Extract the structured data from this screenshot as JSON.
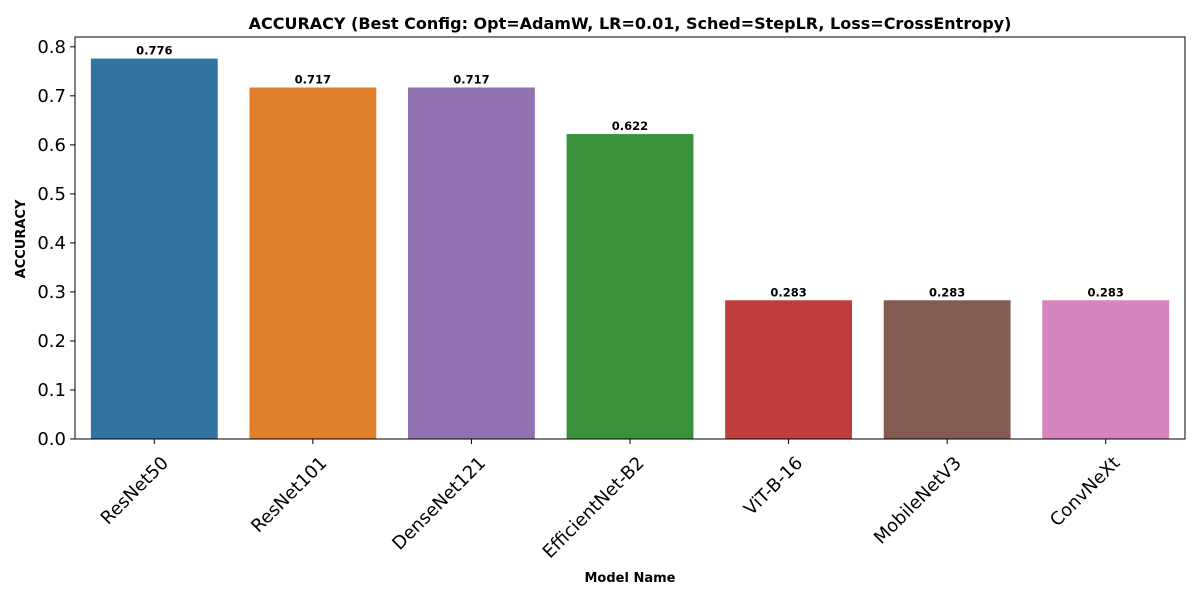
{
  "chart_data": {
    "type": "bar",
    "title": "ACCURACY (Best Config: Opt=AdamW, LR=0.01, Sched=StepLR, Loss=CrossEntropy)",
    "xlabel": "Model Name",
    "ylabel": "ACCURACY",
    "ylim": [
      0,
      0.82
    ],
    "yticks": [
      0.0,
      0.1,
      0.2,
      0.3,
      0.4,
      0.5,
      0.6,
      0.7,
      0.8
    ],
    "ytick_labels": [
      "0.0",
      "0.1",
      "0.2",
      "0.3",
      "0.4",
      "0.5",
      "0.6",
      "0.7",
      "0.8"
    ],
    "grid": false,
    "categories": [
      "ResNet50",
      "ResNet101",
      "DenseNet121",
      "EfficientNet-B2",
      "ViT-B-16",
      "MobileNetV3",
      "ConvNeXt"
    ],
    "values": [
      0.776,
      0.717,
      0.717,
      0.622,
      0.283,
      0.283,
      0.283
    ],
    "data_labels": [
      "0.776",
      "0.717",
      "0.717",
      "0.622",
      "0.283",
      "0.283",
      "0.283"
    ],
    "colors": [
      "#3274a1",
      "#e1812c",
      "#9372b2",
      "#3a923a",
      "#c03d3e",
      "#845b53",
      "#d684bd"
    ]
  }
}
